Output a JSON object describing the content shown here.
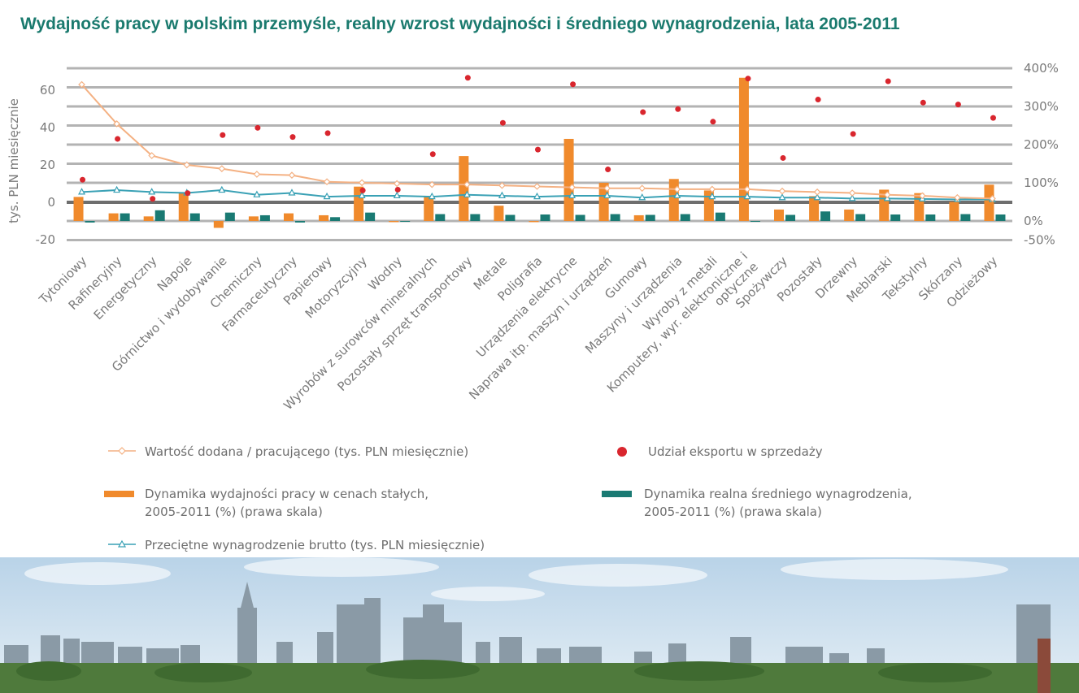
{
  "title": "Wydajność pracy w polskim przemyśle,  realny wzrost wydajności i średniego wynagrodzenia, lata 2005-2011",
  "chart_data": {
    "type": "bar",
    "title": "Wydajność pracy w polskim przemyśle,  realny wzrost wydajności i średniego wynagrodzenia, lata 2005-2011",
    "ylabel": "tys. PLN miesięcznie",
    "ylim": [
      -20,
      60
    ],
    "y_ticks": [
      "-20",
      "0",
      "20",
      "40",
      "60"
    ],
    "y2lim": [
      -50,
      400
    ],
    "y2_ticks": [
      "-50%",
      "0%",
      "100%",
      "200%",
      "300%",
      "400%"
    ],
    "grid": true,
    "legend_position": "bottom",
    "categories": [
      "Tytoniowy",
      "Rafineryjny",
      "Energetyczny",
      "Napoje",
      "Górnictwo i wydobywanie",
      "Chemiczny",
      "Farmaceutyczny",
      "Papierowy",
      "Motoryzcyjny",
      "Wodny",
      "Wyrobów z surowców mineralnych",
      "Pozostały sprzęt transportowy",
      "Metale",
      "Poligrafia",
      "Urządzenia elektrycne",
      "Naprawa itp. maszyn i urządzeń",
      "Gumowy",
      "Maszyny i urządzenia",
      "Wyroby z metali",
      "Komputery, wyr. elektroniczne i optyczne",
      "Spożywczy",
      "Pozostały",
      "Drzewny",
      "Meblarski",
      "Tekstylny",
      "Skórzany",
      "Odzieżowy"
    ],
    "series": [
      {
        "name": "Wartość dodana / pracującego (tys. PLN miesięcznie)",
        "kind": "line",
        "axis": "left",
        "color": "#f4b183",
        "values": [
          63,
          42,
          25,
          20,
          18,
          15,
          14.5,
          11,
          10.5,
          10,
          9.5,
          9.5,
          9,
          8.5,
          8,
          7.5,
          7.5,
          7,
          7,
          7,
          6,
          5.5,
          5,
          4,
          3.5,
          2.5,
          2
        ]
      },
      {
        "name": "Udział eksportu w sprzedaży",
        "kind": "scatter",
        "axis": "right",
        "color": "#d9262e",
        "values": [
          108,
          215,
          58,
          73,
          225,
          244,
          220,
          230,
          80,
          82,
          175,
          375,
          257,
          187,
          358,
          135,
          285,
          293,
          260,
          373,
          165,
          318,
          228,
          366,
          310,
          305,
          270
        ]
      },
      {
        "name": "Dynamika wydajności pracy w cenach stałych,\n2005-2011 (%) (prawa skala)",
        "kind": "bar",
        "axis": "right",
        "color": "#f08a2c",
        "values": [
          63,
          20,
          12,
          75,
          -18,
          12,
          20,
          15,
          90,
          -3,
          65,
          170,
          40,
          -3,
          215,
          100,
          15,
          110,
          80,
          375,
          30,
          65,
          30,
          82,
          73,
          50,
          95
        ]
      },
      {
        "name": "Dynamika realna średniego wynagrodzenia,\n2005-2011 (%) (prawa skala)",
        "kind": "bar",
        "axis": "right",
        "color": "#1a7a73",
        "values": [
          -4,
          20,
          28,
          20,
          22,
          15,
          -4,
          10,
          22,
          0,
          18,
          18,
          16,
          17,
          16,
          18,
          16,
          18,
          22,
          0,
          16,
          25,
          18,
          17,
          17,
          18,
          17
        ]
      },
      {
        "name": "Przeciętne wynagrodzenie brutto (tys. PLN miesięcznie)",
        "kind": "line",
        "axis": "left",
        "color": "#3aa1b5",
        "values": [
          5.5,
          6.5,
          5.5,
          5,
          6.5,
          4,
          5,
          3,
          3.5,
          3.5,
          3,
          4,
          3.5,
          3,
          3.5,
          3.5,
          2.5,
          3.5,
          3,
          3,
          2.5,
          2.5,
          2,
          2,
          1.8,
          1.5,
          1.5
        ]
      }
    ]
  },
  "legend": [
    {
      "label": "Wartość dodana / pracującego (tys. PLN miesięcznie)",
      "symbol": "line-diamond"
    },
    {
      "label": "Udział eksportu w sprzedaży",
      "symbol": "dot"
    },
    {
      "label": "Dynamika wydajności pracy w cenach stałych,\n2005-2011 (%) (prawa skala)",
      "symbol": "bar"
    },
    {
      "label": "Dynamika realna średniego wynagrodzenia,\n2005-2011 (%) (prawa skala)",
      "symbol": "bar"
    },
    {
      "label": "Przeciętne wynagrodzenie brutto (tys. PLN miesięcznie)",
      "symbol": "line-triangle"
    }
  ],
  "colors": {
    "title": "#1a7a6e",
    "grid": "#b3b3b3",
    "zero_line": "#6e6e6e",
    "sky_top": "#b9d3e8",
    "sky_bottom": "#e4eef5",
    "buildings": "#8a9aa6",
    "trees": "#4f7a3c"
  },
  "photo": {
    "description_icon": "city-skyline-photo"
  }
}
